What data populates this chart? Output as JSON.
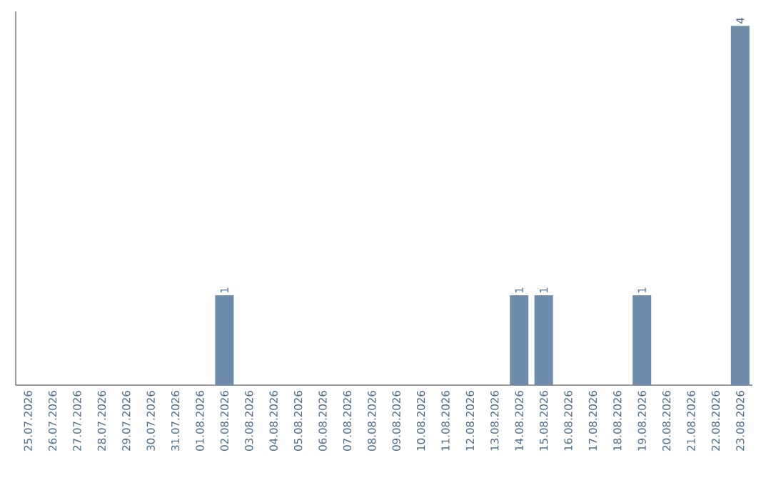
{
  "chart_data": {
    "type": "bar",
    "categories": [
      "25.07.2026",
      "26.07.2026",
      "27.07.2026",
      "28.07.2026",
      "29.07.2026",
      "30.07.2026",
      "31.07.2026",
      "01.08.2026",
      "02.08.2026",
      "03.08.2026",
      "04.08.2026",
      "05.08.2026",
      "06.08.2026",
      "07.08.2026",
      "08.08.2026",
      "09.08.2026",
      "10.08.2026",
      "11.08.2026",
      "12.08.2026",
      "13.08.2026",
      "14.08.2026",
      "15.08.2026",
      "16.08.2026",
      "17.08.2026",
      "18.08.2026",
      "19.08.2026",
      "20.08.2026",
      "21.08.2026",
      "22.08.2026",
      "23.08.2026"
    ],
    "values": [
      null,
      null,
      null,
      null,
      null,
      null,
      null,
      null,
      1,
      null,
      null,
      null,
      null,
      null,
      null,
      null,
      null,
      null,
      null,
      null,
      1,
      1,
      null,
      null,
      null,
      1,
      null,
      null,
      null,
      4
    ],
    "value_labels": [
      null,
      null,
      null,
      null,
      null,
      null,
      null,
      null,
      "1",
      null,
      null,
      null,
      null,
      null,
      null,
      null,
      null,
      null,
      null,
      null,
      "1",
      "1",
      null,
      null,
      null,
      "1",
      null,
      null,
      null,
      "4"
    ],
    "color": "#6f8dab",
    "tick_labels": "x"
  }
}
